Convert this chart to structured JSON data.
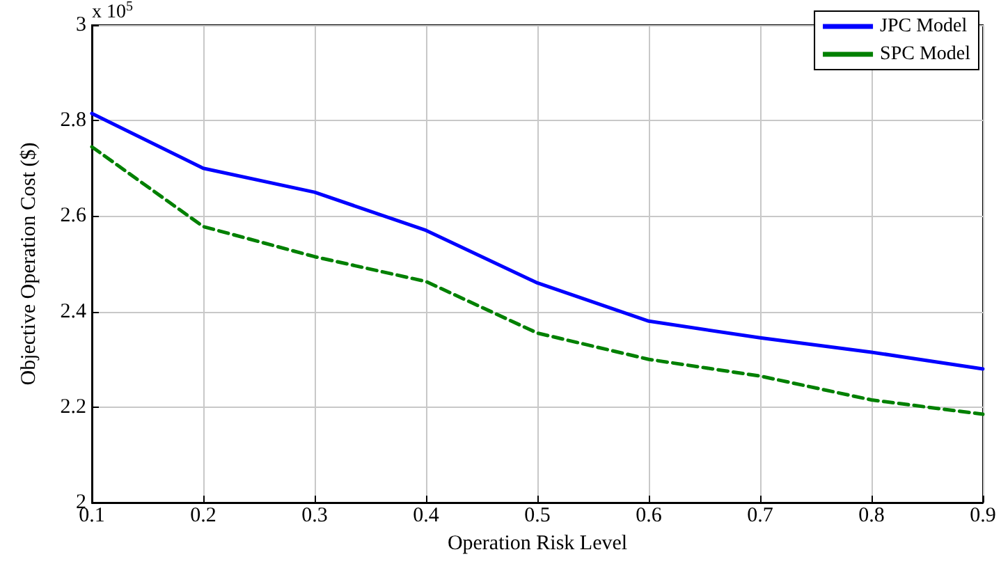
{
  "chart_data": {
    "type": "line",
    "xlabel": "Operation Risk Level",
    "ylabel": "Objective Operation Cost ($)",
    "x": [
      0.1,
      0.2,
      0.3,
      0.4,
      0.5,
      0.6,
      0.7,
      0.8,
      0.9
    ],
    "series": [
      {
        "name": "JPC Model",
        "color": "#0000ff",
        "line_style": "solid",
        "values": [
          2.815,
          2.7,
          2.65,
          2.57,
          2.46,
          2.38,
          2.345,
          2.315,
          2.28
        ]
      },
      {
        "name": "SPC Model",
        "color": "#008000",
        "line_style": "dashed",
        "values": [
          2.745,
          2.578,
          2.515,
          2.463,
          2.355,
          2.3,
          2.265,
          2.215,
          2.185
        ]
      }
    ],
    "xlim": [
      0.1,
      0.9
    ],
    "xticks": [
      0.1,
      0.2,
      0.3,
      0.4,
      0.5,
      0.6,
      0.7,
      0.8,
      0.9
    ],
    "ylim": [
      2,
      3
    ],
    "yticks": [
      2,
      2.2,
      2.4,
      2.6,
      2.8,
      3
    ],
    "annotations": [
      "x 10$^{5}$"
    ],
    "grid": true,
    "legend": "top right",
    "marker": "none"
  }
}
